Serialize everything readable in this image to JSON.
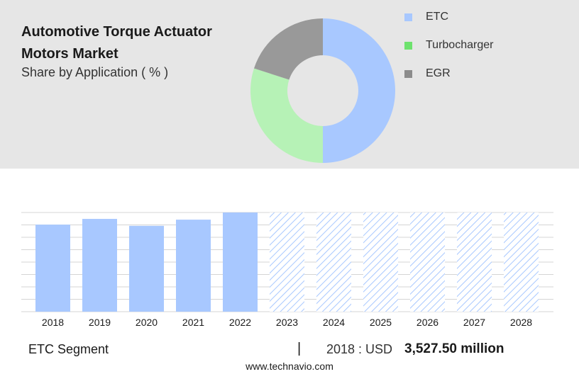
{
  "header": {
    "title_line1": "Automotive Torque Actuator",
    "title_line2": "Motors Market",
    "subtitle": "Share by Application ( % )"
  },
  "colors": {
    "etc": "#a8c8ff",
    "turbocharger": "#b6f2b6",
    "egr": "#999999",
    "forecast_hatch": "#a8c8ff",
    "panel_bg": "#e6e6e6"
  },
  "legend": [
    {
      "label": "ETC",
      "swatch_color": "#a8c8ff"
    },
    {
      "label": "Turbocharger",
      "swatch_color": "#6ee26e"
    },
    {
      "label": "EGR",
      "swatch_color": "#8c8c8c"
    }
  ],
  "chart_data": [
    {
      "type": "pie",
      "subtype": "donut",
      "title": "Share by Application ( % )",
      "categories": [
        "ETC",
        "Turbocharger",
        "EGR"
      ],
      "values": [
        50,
        30,
        20
      ],
      "colors": [
        "#a8c8ff",
        "#b6f2b6",
        "#999999"
      ]
    },
    {
      "type": "bar",
      "categories": [
        "2018",
        "2019",
        "2020",
        "2021",
        "2022",
        "2023",
        "2024",
        "2025",
        "2026",
        "2027",
        "2028"
      ],
      "series": [
        {
          "values": [
            3527.5,
            3760,
            3480,
            3730,
            4020,
            4020,
            4020,
            4020,
            4020,
            4020,
            4020
          ]
        }
      ],
      "forecast_from": "2023",
      "ylim": [
        0,
        4020
      ],
      "grid": true
    }
  ],
  "footer": {
    "segment_label": "ETC Segment",
    "separator": "|",
    "year_label": "2018 : USD",
    "value_label": "3,527.50 million",
    "website": "www.technavio.com"
  }
}
